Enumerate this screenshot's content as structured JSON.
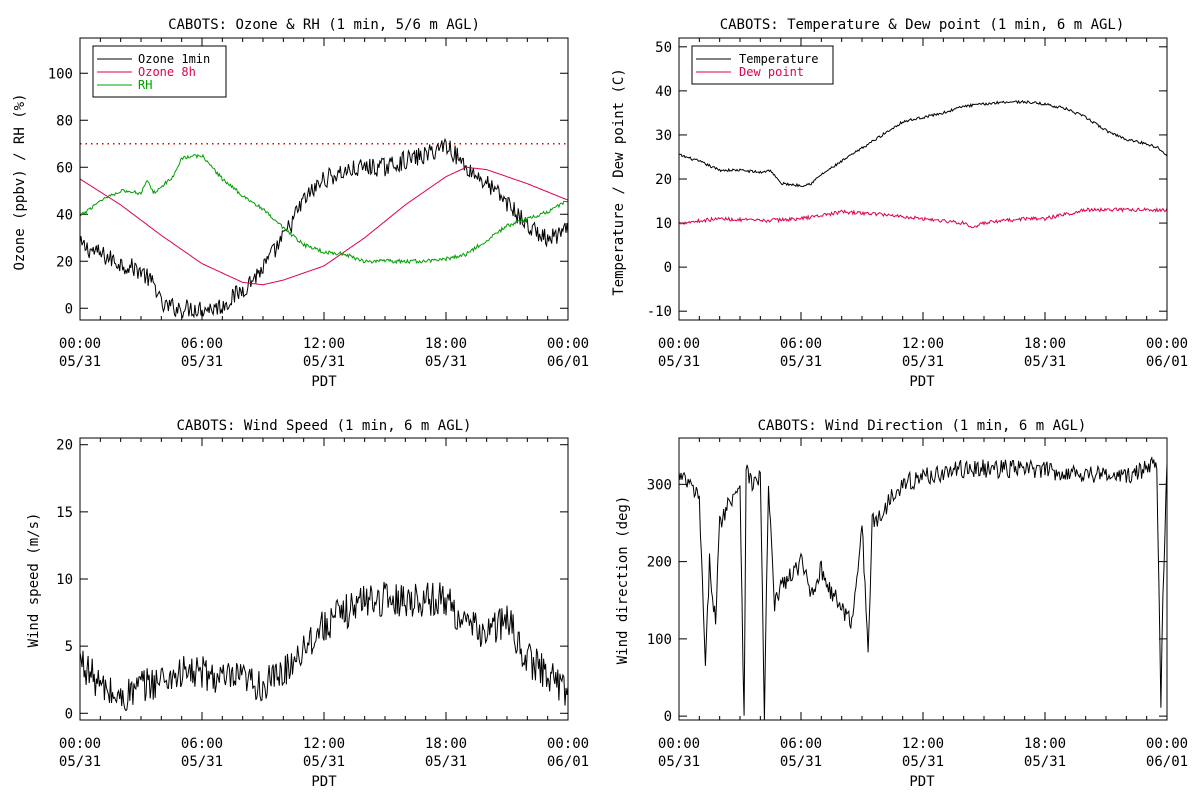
{
  "chart_data": [
    {
      "id": "ozone-rh",
      "type": "line",
      "title": "CABOTS: Ozone & RH (1 min, 5/6 m AGL)",
      "ylabel": "Ozone (ppbv) / RH (%)",
      "xlabel": "PDT",
      "x_ticks": [
        {
          "time": "00:00",
          "date": "05/31"
        },
        {
          "time": "06:00",
          "date": "05/31"
        },
        {
          "time": "12:00",
          "date": "05/31"
        },
        {
          "time": "18:00",
          "date": "05/31"
        },
        {
          "time": "00:00",
          "date": "06/01"
        }
      ],
      "xlim_hours": [
        0,
        24
      ],
      "ylim": [
        -5,
        115
      ],
      "yticks": [
        0,
        20,
        40,
        60,
        80,
        100
      ],
      "reference_line": {
        "y": 70,
        "color": "#e00000",
        "style": "dotted"
      },
      "legend_position": "top-left",
      "series": [
        {
          "name": "Ozone 1min",
          "color": "#000000",
          "noise": 4,
          "points": [
            [
              0,
              27
            ],
            [
              1,
              23
            ],
            [
              2,
              19
            ],
            [
              3,
              16
            ],
            [
              3.8,
              8
            ],
            [
              4,
              1
            ],
            [
              5,
              0
            ],
            [
              6,
              0
            ],
            [
              6.5,
              0
            ],
            [
              7,
              1
            ],
            [
              8,
              8
            ],
            [
              9,
              17
            ],
            [
              10,
              30
            ],
            [
              11,
              46
            ],
            [
              12,
              55
            ],
            [
              13,
              58
            ],
            [
              14,
              60
            ],
            [
              15,
              60
            ],
            [
              16,
              63
            ],
            [
              17,
              65
            ],
            [
              18,
              70
            ],
            [
              19,
              60
            ],
            [
              20,
              53
            ],
            [
              21,
              45
            ],
            [
              22,
              35
            ],
            [
              23,
              29
            ],
            [
              24,
              33
            ]
          ]
        },
        {
          "name": "Ozone 8h",
          "color": "#e0004d",
          "noise": 0,
          "points": [
            [
              0,
              55
            ],
            [
              2,
              44
            ],
            [
              4,
              31
            ],
            [
              6,
              19
            ],
            [
              8,
              11
            ],
            [
              9,
              10
            ],
            [
              10,
              12
            ],
            [
              12,
              18
            ],
            [
              14,
              30
            ],
            [
              16,
              44
            ],
            [
              18,
              56
            ],
            [
              19,
              60
            ],
            [
              20,
              59
            ],
            [
              22,
              53
            ],
            [
              24,
              46
            ]
          ]
        },
        {
          "name": "RH",
          "color": "#00a000",
          "noise": 0.8,
          "points": [
            [
              0,
              39
            ],
            [
              1,
              46
            ],
            [
              2,
              50
            ],
            [
              3,
              49
            ],
            [
              3.3,
              55
            ],
            [
              3.6,
              49
            ],
            [
              4,
              52
            ],
            [
              4.5,
              55
            ],
            [
              5,
              64
            ],
            [
              6,
              65
            ],
            [
              7,
              55
            ],
            [
              8,
              48
            ],
            [
              9,
              42
            ],
            [
              10,
              34
            ],
            [
              11,
              27
            ],
            [
              12,
              24
            ],
            [
              13,
              23
            ],
            [
              14,
              20
            ],
            [
              15,
              20
            ],
            [
              16,
              20
            ],
            [
              17,
              20
            ],
            [
              18,
              21
            ],
            [
              19,
              23
            ],
            [
              20,
              29
            ],
            [
              21,
              35
            ],
            [
              22,
              38
            ],
            [
              23,
              41
            ],
            [
              24,
              46
            ]
          ]
        }
      ]
    },
    {
      "id": "temp-dew",
      "type": "line",
      "title": "CABOTS: Temperature & Dew point (1 min, 6 m AGL)",
      "ylabel": "Temperature / Dew point (C)",
      "xlabel": "PDT",
      "x_ticks": [
        {
          "time": "00:00",
          "date": "05/31"
        },
        {
          "time": "06:00",
          "date": "05/31"
        },
        {
          "time": "12:00",
          "date": "05/31"
        },
        {
          "time": "18:00",
          "date": "05/31"
        },
        {
          "time": "00:00",
          "date": "06/01"
        }
      ],
      "xlim_hours": [
        0,
        24
      ],
      "ylim": [
        -12,
        52
      ],
      "yticks": [
        -10,
        0,
        10,
        20,
        30,
        40,
        50
      ],
      "legend_position": "top-left",
      "series": [
        {
          "name": "Temperature",
          "color": "#000000",
          "noise": 0.3,
          "points": [
            [
              0,
              25.5
            ],
            [
              1,
              24
            ],
            [
              2,
              22
            ],
            [
              3,
              22
            ],
            [
              4,
              21.5
            ],
            [
              4.5,
              22
            ],
            [
              5,
              19
            ],
            [
              6,
              18.5
            ],
            [
              6.5,
              19
            ],
            [
              7,
              21
            ],
            [
              8,
              24
            ],
            [
              9,
              27
            ],
            [
              10,
              30
            ],
            [
              11,
              33
            ],
            [
              12,
              34
            ],
            [
              13,
              35
            ],
            [
              14,
              36.5
            ],
            [
              15,
              37
            ],
            [
              16,
              37.5
            ],
            [
              17,
              37.5
            ],
            [
              18,
              37
            ],
            [
              19,
              36
            ],
            [
              20,
              34
            ],
            [
              21,
              31
            ],
            [
              22,
              29
            ],
            [
              23,
              28
            ],
            [
              23.6,
              27
            ],
            [
              24,
              25.5
            ]
          ]
        },
        {
          "name": "Dew point",
          "color": "#e0004d",
          "noise": 0.4,
          "points": [
            [
              0,
              10
            ],
            [
              2,
              11
            ],
            [
              4,
              10.5
            ],
            [
              6,
              11
            ],
            [
              8,
              12.5
            ],
            [
              10,
              12
            ],
            [
              12,
              11
            ],
            [
              14,
              10
            ],
            [
              14.5,
              9
            ],
            [
              15,
              10
            ],
            [
              16,
              10.5
            ],
            [
              17,
              11
            ],
            [
              18,
              11
            ],
            [
              19,
              12
            ],
            [
              20,
              13
            ],
            [
              21,
              13
            ],
            [
              22,
              13
            ],
            [
              24,
              13
            ]
          ]
        }
      ]
    },
    {
      "id": "wind-speed",
      "type": "line",
      "title": "CABOTS: Wind Speed (1 min, 6 m AGL)",
      "ylabel": "Wind speed (m/s)",
      "xlabel": "PDT",
      "x_ticks": [
        {
          "time": "00:00",
          "date": "05/31"
        },
        {
          "time": "06:00",
          "date": "05/31"
        },
        {
          "time": "12:00",
          "date": "05/31"
        },
        {
          "time": "18:00",
          "date": "05/31"
        },
        {
          "time": "00:00",
          "date": "06/01"
        }
      ],
      "xlim_hours": [
        0,
        24
      ],
      "ylim": [
        -0.5,
        20.5
      ],
      "yticks": [
        0,
        5,
        10,
        15,
        20
      ],
      "series": [
        {
          "name": "",
          "color": "#000000",
          "noise": 1.3,
          "points": [
            [
              0,
              4
            ],
            [
              1,
              2
            ],
            [
              2,
              1
            ],
            [
              3,
              2
            ],
            [
              4,
              2.5
            ],
            [
              5,
              3
            ],
            [
              6,
              3
            ],
            [
              7,
              2.5
            ],
            [
              8,
              2.5
            ],
            [
              9,
              2
            ],
            [
              10,
              3
            ],
            [
              11,
              5
            ],
            [
              12,
              6.5
            ],
            [
              13,
              7.5
            ],
            [
              14,
              8.5
            ],
            [
              15,
              8.5
            ],
            [
              16,
              8.5
            ],
            [
              17,
              8.5
            ],
            [
              18,
              8.5
            ],
            [
              19,
              6.5
            ],
            [
              20,
              6
            ],
            [
              21,
              7
            ],
            [
              22,
              4
            ],
            [
              23,
              3
            ],
            [
              24,
              1.5
            ]
          ]
        }
      ]
    },
    {
      "id": "wind-direction",
      "type": "line",
      "title": "CABOTS: Wind Direction (1 min, 6 m AGL)",
      "ylabel": "Wind direction (deg)",
      "xlabel": "PDT",
      "x_ticks": [
        {
          "time": "00:00",
          "date": "05/31"
        },
        {
          "time": "06:00",
          "date": "05/31"
        },
        {
          "time": "12:00",
          "date": "05/31"
        },
        {
          "time": "18:00",
          "date": "05/31"
        },
        {
          "time": "00:00",
          "date": "06/01"
        }
      ],
      "xlim_hours": [
        0,
        24
      ],
      "ylim": [
        -5,
        360
      ],
      "yticks": [
        0,
        100,
        200,
        300
      ],
      "series": [
        {
          "name": "",
          "color": "#000000",
          "noise": 12,
          "points": [
            [
              0,
              310
            ],
            [
              0.5,
              300
            ],
            [
              1,
              280
            ],
            [
              1.3,
              60
            ],
            [
              1.5,
              200
            ],
            [
              1.8,
              120
            ],
            [
              2,
              250
            ],
            [
              2.5,
              280
            ],
            [
              3,
              300
            ],
            [
              3.2,
              0
            ],
            [
              3.3,
              320
            ],
            [
              3.6,
              300
            ],
            [
              4,
              310
            ],
            [
              4.2,
              0
            ],
            [
              4.4,
              300
            ],
            [
              4.7,
              140
            ],
            [
              5,
              170
            ],
            [
              5.5,
              180
            ],
            [
              6,
              200
            ],
            [
              6.5,
              160
            ],
            [
              7,
              190
            ],
            [
              7.5,
              160
            ],
            [
              8,
              140
            ],
            [
              8.5,
              120
            ],
            [
              9,
              250
            ],
            [
              9.3,
              80
            ],
            [
              9.5,
              250
            ],
            [
              10,
              260
            ],
            [
              10.5,
              290
            ],
            [
              11,
              300
            ],
            [
              12,
              310
            ],
            [
              13,
              315
            ],
            [
              14,
              320
            ],
            [
              15,
              320
            ],
            [
              16,
              320
            ],
            [
              17,
              320
            ],
            [
              18,
              318
            ],
            [
              19,
              315
            ],
            [
              20,
              315
            ],
            [
              21,
              312
            ],
            [
              22,
              310
            ],
            [
              22.5,
              315
            ],
            [
              23,
              320
            ],
            [
              23.5,
              330
            ],
            [
              23.7,
              20
            ],
            [
              23.8,
              160
            ],
            [
              24,
              330
            ]
          ]
        }
      ]
    }
  ]
}
